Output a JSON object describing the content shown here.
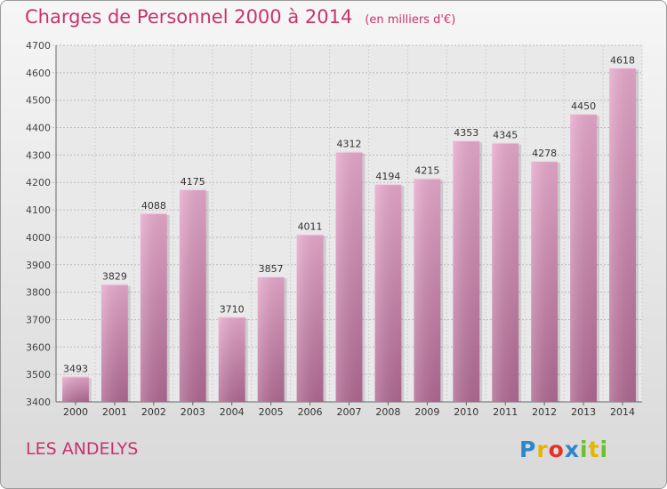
{
  "header": {
    "title": "Charges de Personnel 2000 à 2014",
    "subtitle": "(en milliers d'€)"
  },
  "footer": {
    "commune": "LES ANDELYS",
    "logo_letters": [
      {
        "ch": "P",
        "color": "#2f86c9"
      },
      {
        "ch": "r",
        "color": "#e8b400"
      },
      {
        "ch": "o",
        "color": "#e8302a"
      },
      {
        "ch": "x",
        "color": "#2f86c9"
      },
      {
        "ch": "i",
        "color": "#6cbf2e"
      },
      {
        "ch": "t",
        "color": "#e8b400"
      },
      {
        "ch": "i",
        "color": "#6cbf2e"
      }
    ]
  },
  "chart_data": {
    "type": "bar",
    "categories": [
      "2000",
      "2001",
      "2002",
      "2003",
      "2004",
      "2005",
      "2006",
      "2007",
      "2008",
      "2009",
      "2010",
      "2011",
      "2012",
      "2013",
      "2014"
    ],
    "values": [
      3493,
      3829,
      4088,
      4175,
      3710,
      3857,
      4011,
      4312,
      4194,
      4215,
      4353,
      4345,
      4278,
      4450,
      4618
    ],
    "ylim": [
      3400,
      4700
    ],
    "yticks": [
      3400,
      3500,
      3600,
      3700,
      3800,
      3900,
      4000,
      4100,
      4200,
      4300,
      4400,
      4500,
      4600,
      4700
    ],
    "grid": true,
    "bar_color": "#d98bb4",
    "title": "Charges de Personnel 2000 à 2014",
    "subtitle": "(en milliers d'€)"
  }
}
